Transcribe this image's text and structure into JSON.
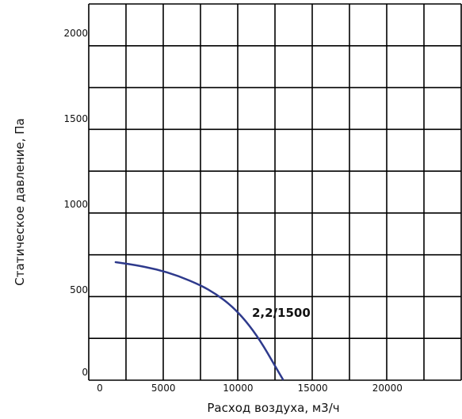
{
  "chart_data": {
    "type": "line",
    "title": "",
    "xlabel": "Расход воздуха, м3/ч",
    "ylabel": "Статическое давление, Па",
    "xlim": [
      0,
      25000
    ],
    "ylim": [
      0,
      2200
    ],
    "grid": true,
    "x_ticks": [
      {
        "value": 0,
        "label": "0"
      },
      {
        "value": 5000,
        "label": "5000"
      },
      {
        "value": 10000,
        "label": "10000"
      },
      {
        "value": 15000,
        "label": "15000"
      },
      {
        "value": 20000,
        "label": "20000"
      }
    ],
    "y_ticks": [
      {
        "value": 0,
        "label": "0"
      },
      {
        "value": 500,
        "label": "500"
      },
      {
        "value": 1000,
        "label": "1000"
      },
      {
        "value": 1500,
        "label": "1500"
      },
      {
        "value": 2000,
        "label": "2000"
      }
    ],
    "series": [
      {
        "name": "2,2/1500",
        "color": "#2e3a8c",
        "x": [
          1800,
          3000,
          4500,
          6000,
          7500,
          8500,
          9500,
          10500,
          11500,
          12500,
          13000
        ],
        "y": [
          690,
          675,
          650,
          610,
          555,
          505,
          440,
          350,
          230,
          80,
          5
        ]
      }
    ]
  }
}
